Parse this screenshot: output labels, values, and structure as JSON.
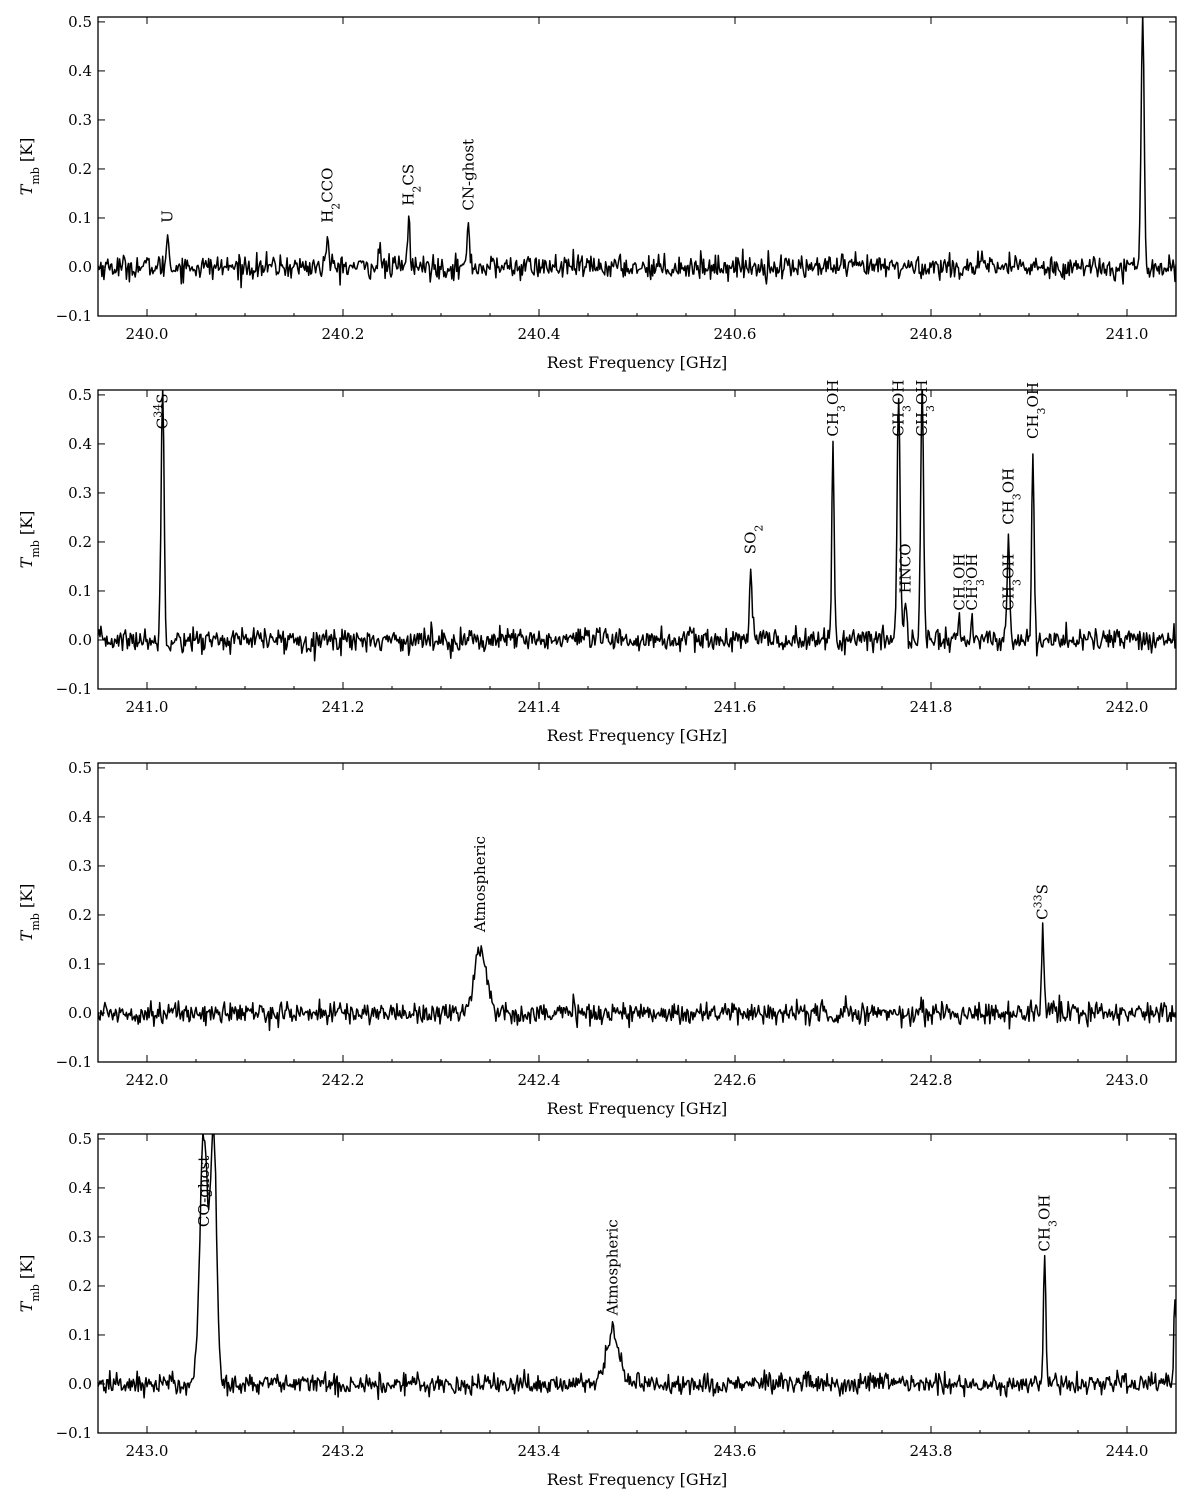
{
  "figure": {
    "xlabel": "Rest Frequency [GHz]",
    "ylabel_main": "T",
    "ylabel_sub": "mb",
    "ylabel_unit": " [K]"
  },
  "chart_data": [
    {
      "type": "line",
      "xlabel": "Rest Frequency [GHz]",
      "ylabel": "Tmb [K]",
      "xlim": [
        239.95,
        241.05
      ],
      "ylim": [
        -0.1,
        0.51
      ],
      "xticks": [
        "240.0",
        "240.2",
        "240.4",
        "240.6",
        "240.8",
        "241.0"
      ],
      "yticks": [
        "−0.1",
        "0.0",
        "0.1",
        "0.2",
        "0.3",
        "0.4",
        "0.5"
      ],
      "noise_rms": 0.012,
      "baseline": 0.0,
      "peaks": [
        {
          "x": 240.021,
          "y": 0.07,
          "w": 0.0012
        },
        {
          "x": 240.184,
          "y": 0.065,
          "w": 0.0012
        },
        {
          "x": 240.237,
          "y": 0.04,
          "w": 0.0012
        },
        {
          "x": 240.267,
          "y": 0.105,
          "w": 0.0012
        },
        {
          "x": 240.328,
          "y": 0.09,
          "w": 0.0012
        },
        {
          "x": 241.016,
          "y": 0.51,
          "w": 0.0015
        }
      ],
      "annotations": [
        {
          "text": "U",
          "x": 240.021,
          "y": 0.09
        },
        {
          "text": "H2CCO",
          "x": 240.184,
          "y": 0.09
        },
        {
          "text": "H2CS",
          "x": 240.267,
          "y": 0.125
        },
        {
          "text": "CN-ghost",
          "x": 240.328,
          "y": 0.115
        }
      ]
    },
    {
      "type": "line",
      "xlabel": "Rest Frequency [GHz]",
      "ylabel": "Tmb [K]",
      "xlim": [
        240.95,
        242.05
      ],
      "ylim": [
        -0.1,
        0.51
      ],
      "xticks": [
        "241.0",
        "241.2",
        "241.4",
        "241.6",
        "241.8",
        "242.0"
      ],
      "yticks": [
        "−0.1",
        "0.0",
        "0.1",
        "0.2",
        "0.3",
        "0.4",
        "0.5"
      ],
      "noise_rms": 0.012,
      "baseline": 0.0,
      "peaks": [
        {
          "x": 241.016,
          "y": 0.51,
          "w": 0.0015
        },
        {
          "x": 241.616,
          "y": 0.155,
          "w": 0.0012
        },
        {
          "x": 241.7,
          "y": 0.395,
          "w": 0.0012
        },
        {
          "x": 241.767,
          "y": 0.51,
          "w": 0.0015
        },
        {
          "x": 241.774,
          "y": 0.08,
          "w": 0.0015
        },
        {
          "x": 241.791,
          "y": 0.51,
          "w": 0.0015
        },
        {
          "x": 241.829,
          "y": 0.03,
          "w": 0.0012
        },
        {
          "x": 241.842,
          "y": 0.04,
          "w": 0.0012
        },
        {
          "x": 241.879,
          "y": 0.215,
          "w": 0.0012
        },
        {
          "x": 241.904,
          "y": 0.39,
          "w": 0.0012
        }
      ],
      "annotations": [
        {
          "text": "C34S",
          "x": 241.016,
          "y": 0.43
        },
        {
          "text": "SO2",
          "x": 241.616,
          "y": 0.175
        },
        {
          "text": "CH3OH",
          "x": 241.7,
          "y": 0.415
        },
        {
          "text": "CH3OH",
          "x": 241.767,
          "y": 0.415
        },
        {
          "text": "CH3OH",
          "x": 241.791,
          "y": 0.415
        },
        {
          "text": "HNCO",
          "x": 241.774,
          "y": 0.095
        },
        {
          "text": "CH3OH",
          "x": 241.829,
          "y": 0.06
        },
        {
          "text": "CH3OH",
          "x": 241.842,
          "y": 0.06
        },
        {
          "text": "CH3OH",
          "x": 241.879,
          "y": 0.235
        },
        {
          "text": "CH3OH",
          "x": 241.879,
          "y": 0.06
        },
        {
          "text": "CH3OH",
          "x": 241.904,
          "y": 0.41
        }
      ]
    },
    {
      "type": "line",
      "xlabel": "Rest Frequency [GHz]",
      "ylabel": "Tmb [K]",
      "xlim": [
        241.95,
        243.05
      ],
      "ylim": [
        -0.1,
        0.51
      ],
      "xticks": [
        "242.0",
        "242.2",
        "242.4",
        "242.6",
        "242.8",
        "243.0"
      ],
      "yticks": [
        "−0.1",
        "0.0",
        "0.1",
        "0.2",
        "0.3",
        "0.4",
        "0.5"
      ],
      "noise_rms": 0.011,
      "baseline": 0.0,
      "peaks": [
        {
          "x": 242.34,
          "y": 0.135,
          "w": 0.006
        },
        {
          "x": 242.914,
          "y": 0.17,
          "w": 0.0012
        }
      ],
      "annotations": [
        {
          "text": "Atmospheric",
          "x": 242.34,
          "y": 0.165
        },
        {
          "text": "C33S",
          "x": 242.914,
          "y": 0.19
        }
      ]
    },
    {
      "type": "line",
      "xlabel": "Rest Frequency [GHz]",
      "ylabel": "Tmb [K]",
      "xlim": [
        242.95,
        244.05
      ],
      "ylim": [
        -0.1,
        0.51
      ],
      "xticks": [
        "243.0",
        "243.2",
        "243.4",
        "243.6",
        "243.8",
        "244.0"
      ],
      "yticks": [
        "−0.1",
        "0.0",
        "0.1",
        "0.2",
        "0.3",
        "0.4",
        "0.5"
      ],
      "noise_rms": 0.011,
      "baseline": 0.0,
      "peaks": [
        {
          "x": 243.058,
          "y": 0.51,
          "w": 0.004
        },
        {
          "x": 243.068,
          "y": 0.51,
          "w": 0.003
        },
        {
          "x": 243.475,
          "y": 0.105,
          "w": 0.007
        },
        {
          "x": 243.916,
          "y": 0.25,
          "w": 0.0012
        },
        {
          "x": 244.049,
          "y": 0.19,
          "w": 0.0012
        }
      ],
      "annotations": [
        {
          "text": "CO-ghost",
          "x": 243.058,
          "y": 0.32
        },
        {
          "text": "Atmospheric",
          "x": 243.475,
          "y": 0.14
        },
        {
          "text": "CH3OH",
          "x": 243.916,
          "y": 0.27
        }
      ]
    }
  ]
}
